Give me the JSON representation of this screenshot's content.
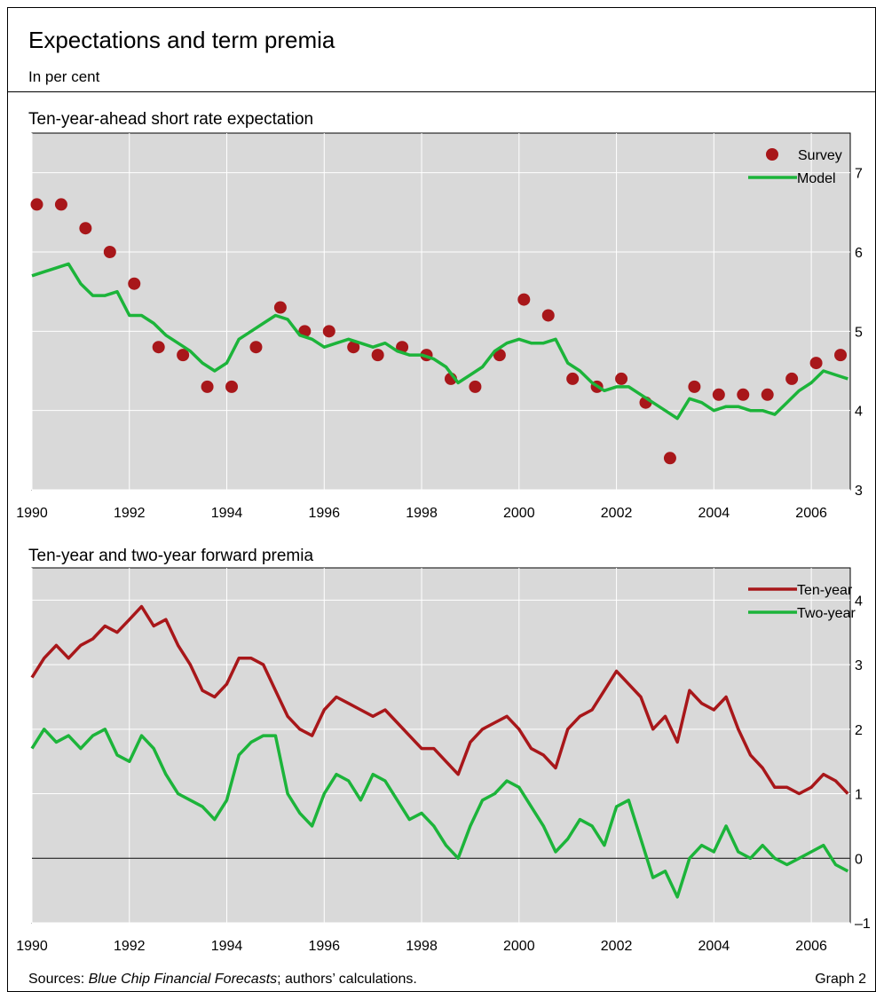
{
  "header": {
    "title": "Expectations and term premia",
    "subtitle": "In per cent"
  },
  "chart_data": [
    {
      "type": "line",
      "title": "Ten-year-ahead short rate expectation",
      "x": [
        1990,
        1990.25,
        1990.5,
        1990.75,
        1991,
        1991.25,
        1991.5,
        1991.75,
        1992,
        1992.25,
        1992.5,
        1992.75,
        1993,
        1993.25,
        1993.5,
        1993.75,
        1994,
        1994.25,
        1994.5,
        1994.75,
        1995,
        1995.25,
        1995.5,
        1995.75,
        1996,
        1996.25,
        1996.5,
        1996.75,
        1997,
        1997.25,
        1997.5,
        1997.75,
        1998,
        1998.25,
        1998.5,
        1998.75,
        1999,
        1999.25,
        1999.5,
        1999.75,
        2000,
        2000.25,
        2000.5,
        2000.75,
        2001,
        2001.25,
        2001.5,
        2001.75,
        2002,
        2002.25,
        2002.5,
        2002.75,
        2003,
        2003.25,
        2003.5,
        2003.75,
        2004,
        2004.25,
        2004.5,
        2004.75,
        2005,
        2005.25,
        2005.5,
        2005.75,
        2006,
        2006.25,
        2006.5,
        2006.75
      ],
      "xlim": [
        1990,
        2006.8
      ],
      "xticks": [
        1990,
        1992,
        1994,
        1996,
        1998,
        2000,
        2002,
        2004,
        2006
      ],
      "ylim": [
        3,
        7.5
      ],
      "yticks": [
        3,
        4,
        5,
        6,
        7
      ],
      "grid": true,
      "legend": "upper right",
      "series": [
        {
          "name": "Survey",
          "type": "scatter",
          "color": "#a8171a",
          "x": [
            1990.1,
            1990.6,
            1991.1,
            1991.6,
            1992.1,
            1992.6,
            1993.1,
            1993.6,
            1994.1,
            1994.6,
            1995.1,
            1995.6,
            1996.1,
            1996.6,
            1997.1,
            1997.6,
            1998.1,
            1998.6,
            1999.1,
            1999.6,
            2000.1,
            2000.6,
            2001.1,
            2001.6,
            2002.1,
            2002.6,
            2003.1,
            2003.6,
            2004.1,
            2004.6,
            2005.1,
            2005.6,
            2006.1,
            2006.6
          ],
          "values": [
            6.6,
            6.6,
            6.3,
            6.0,
            5.6,
            4.8,
            4.7,
            4.3,
            4.3,
            4.8,
            5.3,
            5.0,
            5.0,
            4.8,
            4.7,
            4.8,
            4.7,
            4.4,
            4.3,
            4.7,
            5.4,
            5.2,
            4.4,
            4.3,
            4.4,
            4.1,
            3.4,
            4.3,
            4.2,
            4.2,
            4.2,
            4.4,
            4.6,
            4.7
          ]
        },
        {
          "name": "Model",
          "type": "line",
          "color": "#1cb43a",
          "values": [
            5.7,
            5.75,
            5.8,
            5.85,
            5.6,
            5.45,
            5.45,
            5.5,
            5.2,
            5.2,
            5.1,
            4.95,
            4.85,
            4.75,
            4.6,
            4.5,
            4.6,
            4.9,
            5.0,
            5.1,
            5.2,
            5.15,
            4.95,
            4.9,
            4.8,
            4.85,
            4.9,
            4.85,
            4.8,
            4.85,
            4.75,
            4.7,
            4.7,
            4.65,
            4.55,
            4.35,
            4.45,
            4.55,
            4.75,
            4.85,
            4.9,
            4.85,
            4.85,
            4.9,
            4.6,
            4.5,
            4.35,
            4.25,
            4.3,
            4.3,
            4.2,
            4.1,
            4.0,
            3.9,
            4.15,
            4.1,
            4.0,
            4.05,
            4.05,
            4.0,
            4.0,
            3.95,
            4.1,
            4.25,
            4.35,
            4.5,
            4.45,
            4.4
          ]
        }
      ]
    },
    {
      "type": "line",
      "title": "Ten-year and two-year forward premia",
      "x": [
        1990,
        1990.25,
        1990.5,
        1990.75,
        1991,
        1991.25,
        1991.5,
        1991.75,
        1992,
        1992.25,
        1992.5,
        1992.75,
        1993,
        1993.25,
        1993.5,
        1993.75,
        1994,
        1994.25,
        1994.5,
        1994.75,
        1995,
        1995.25,
        1995.5,
        1995.75,
        1996,
        1996.25,
        1996.5,
        1996.75,
        1997,
        1997.25,
        1997.5,
        1997.75,
        1998,
        1998.25,
        1998.5,
        1998.75,
        1999,
        1999.25,
        1999.5,
        1999.75,
        2000,
        2000.25,
        2000.5,
        2000.75,
        2001,
        2001.25,
        2001.5,
        2001.75,
        2002,
        2002.25,
        2002.5,
        2002.75,
        2003,
        2003.25,
        2003.5,
        2003.75,
        2004,
        2004.25,
        2004.5,
        2004.75,
        2005,
        2005.25,
        2005.5,
        2005.75,
        2006,
        2006.25,
        2006.5,
        2006.75
      ],
      "xlim": [
        1990,
        2006.8
      ],
      "xticks": [
        1990,
        1992,
        1994,
        1996,
        1998,
        2000,
        2002,
        2004,
        2006
      ],
      "ylim": [
        -1,
        4.5
      ],
      "yticks": [
        {
          "value": -1,
          "label": "–1"
        },
        0,
        1,
        2,
        3,
        4
      ],
      "grid": true,
      "zero_line": true,
      "legend": "upper right",
      "series": [
        {
          "name": "Ten-year",
          "color": "#a8171a",
          "values": [
            2.8,
            3.1,
            3.3,
            3.1,
            3.3,
            3.4,
            3.6,
            3.5,
            3.7,
            3.9,
            3.6,
            3.7,
            3.3,
            3.0,
            2.6,
            2.5,
            2.7,
            3.1,
            3.1,
            3.0,
            2.6,
            2.2,
            2.0,
            1.9,
            2.3,
            2.5,
            2.4,
            2.3,
            2.2,
            2.3,
            2.1,
            1.9,
            1.7,
            1.7,
            1.5,
            1.3,
            1.8,
            2.0,
            2.1,
            2.2,
            2.0,
            1.7,
            1.6,
            1.4,
            2.0,
            2.2,
            2.3,
            2.6,
            2.9,
            2.7,
            2.5,
            2.0,
            2.2,
            1.8,
            2.6,
            2.4,
            2.3,
            2.5,
            2.0,
            1.6,
            1.4,
            1.1,
            1.1,
            1.0,
            1.1,
            1.3,
            1.2,
            1.0
          ]
        },
        {
          "name": "Two-year",
          "color": "#1cb43a",
          "values": [
            1.7,
            2.0,
            1.8,
            1.9,
            1.7,
            1.9,
            2.0,
            1.6,
            1.5,
            1.9,
            1.7,
            1.3,
            1.0,
            0.9,
            0.8,
            0.6,
            0.9,
            1.6,
            1.8,
            1.9,
            1.9,
            1.0,
            0.7,
            0.5,
            1.0,
            1.3,
            1.2,
            0.9,
            1.3,
            1.2,
            0.9,
            0.6,
            0.7,
            0.5,
            0.2,
            0.0,
            0.5,
            0.9,
            1.0,
            1.2,
            1.1,
            0.8,
            0.5,
            0.1,
            0.3,
            0.6,
            0.5,
            0.2,
            0.8,
            0.9,
            0.3,
            -0.3,
            -0.2,
            -0.6,
            0.0,
            0.2,
            0.1,
            0.5,
            0.1,
            0.0,
            0.2,
            0.0,
            -0.1,
            0.0,
            0.1,
            0.2,
            -0.1,
            -0.2
          ]
        }
      ]
    }
  ],
  "footer": {
    "sources": [
      "Sources: ",
      "Blue Chip Financial Forecasts",
      "; authors’ calculations."
    ],
    "graph_label": "Graph 2"
  }
}
